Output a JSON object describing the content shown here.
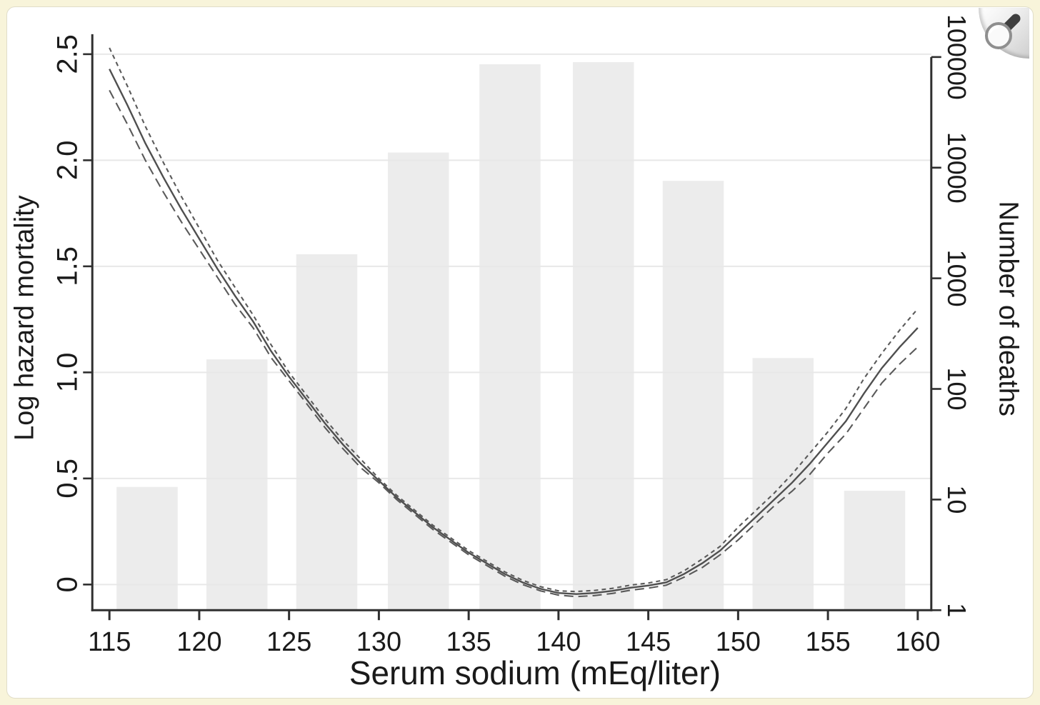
{
  "figure": {
    "xlabel": "Serum sodium (mEq/liter)",
    "ylabel_left": "Log hazard mortality",
    "ylabel_right": "Number of deaths"
  },
  "zoom_button": {
    "icon": "magnifier",
    "handle_color": "#3e3e3e",
    "ring_color": "#8f8f8f",
    "glass_fill": "#fafafa"
  },
  "colors": {
    "page_background": "#f8f4da",
    "card_background": "#ffffff",
    "card_border": "#e0ddc8",
    "axis": "#2f2f2f",
    "gridline": "#e8e8e8",
    "bar_fill": "#ececec",
    "curve": "#4f4f4f",
    "ci_curve": "#5a5a5a",
    "text": "#1a1a1a"
  },
  "chart_data": {
    "type": "line",
    "title": "",
    "xlabel": "Serum sodium (mEq/liter)",
    "ylabel_left": "Log hazard mortality",
    "ylabel_right": "Number of deaths",
    "x_range": [
      115,
      160
    ],
    "y_left_range": [
      -0.12,
      2.6
    ],
    "y_right_log_range": [
      1,
      100000
    ],
    "grid": "horizontal",
    "legend": "none",
    "x_ticks": [
      "115",
      "120",
      "125",
      "130",
      "135",
      "140",
      "145",
      "150",
      "155",
      "160"
    ],
    "x_tick_values": [
      115,
      120,
      125,
      130,
      135,
      140,
      145,
      150,
      155,
      160
    ],
    "y_left_ticks": [
      "0",
      "0.5",
      "1.0",
      "1.5",
      "2.0",
      "2.5"
    ],
    "y_left_tick_values": [
      0,
      0.5,
      1.0,
      1.5,
      2.0,
      2.5
    ],
    "y_right_ticks": [
      "1",
      "10",
      "100",
      "1000",
      "10000",
      "100000"
    ],
    "y_right_tick_values": [
      1,
      10,
      100,
      1000,
      10000,
      100000
    ],
    "histogram": {
      "name": "Number of deaths",
      "axis": "right-log",
      "bin_centers": [
        117.1,
        122.1,
        127.1,
        132.2,
        137.3,
        142.5,
        147.5,
        152.5,
        157.6
      ],
      "bin_half_width": 1.7,
      "counts": [
        13,
        185,
        1650,
        13700,
        86000,
        90000,
        7600,
        190,
        12
      ]
    },
    "x": [
      115,
      116,
      117,
      118,
      119,
      120,
      121,
      122,
      123,
      124,
      125,
      126,
      127,
      128,
      129,
      130,
      131,
      132,
      133,
      134,
      135,
      136,
      137,
      138,
      139,
      140,
      141,
      142,
      143,
      144,
      145,
      146,
      147,
      148,
      149,
      150,
      151,
      152,
      153,
      154,
      155,
      156,
      157,
      158,
      159,
      160
    ],
    "series": [
      {
        "name": "log-hazard-mortality",
        "style": "solid",
        "y": [
          2.43,
          2.26,
          2.08,
          1.92,
          1.77,
          1.63,
          1.49,
          1.36,
          1.24,
          1.1,
          0.98,
          0.87,
          0.76,
          0.66,
          0.57,
          0.49,
          0.41,
          0.34,
          0.27,
          0.21,
          0.15,
          0.1,
          0.05,
          0.01,
          -0.02,
          -0.04,
          -0.045,
          -0.04,
          -0.03,
          -0.015,
          -0.005,
          0.01,
          0.05,
          0.1,
          0.16,
          0.24,
          0.32,
          0.4,
          0.48,
          0.57,
          0.67,
          0.77,
          0.9,
          1.02,
          1.12,
          1.21
        ]
      },
      {
        "name": "upper-95ci",
        "style": "dash-short",
        "y": [
          2.53,
          2.35,
          2.16,
          1.99,
          1.83,
          1.68,
          1.53,
          1.4,
          1.27,
          1.13,
          1.0,
          0.89,
          0.78,
          0.68,
          0.59,
          0.5,
          0.42,
          0.35,
          0.28,
          0.22,
          0.16,
          0.11,
          0.06,
          0.02,
          -0.01,
          -0.03,
          -0.033,
          -0.028,
          -0.018,
          -0.003,
          0.007,
          0.023,
          0.065,
          0.12,
          0.18,
          0.27,
          0.35,
          0.43,
          0.52,
          0.62,
          0.72,
          0.83,
          0.97,
          1.09,
          1.2,
          1.3
        ]
      },
      {
        "name": "lower-95ci",
        "style": "dash-long",
        "y": [
          2.33,
          2.17,
          2.0,
          1.85,
          1.71,
          1.58,
          1.45,
          1.32,
          1.21,
          1.07,
          0.96,
          0.85,
          0.74,
          0.64,
          0.55,
          0.48,
          0.4,
          0.33,
          0.26,
          0.2,
          0.14,
          0.09,
          0.04,
          0.0,
          -0.03,
          -0.05,
          -0.057,
          -0.052,
          -0.042,
          -0.027,
          -0.017,
          -0.003,
          0.035,
          0.08,
          0.14,
          0.21,
          0.29,
          0.37,
          0.44,
          0.52,
          0.62,
          0.71,
          0.83,
          0.95,
          1.04,
          1.12
        ]
      }
    ]
  }
}
